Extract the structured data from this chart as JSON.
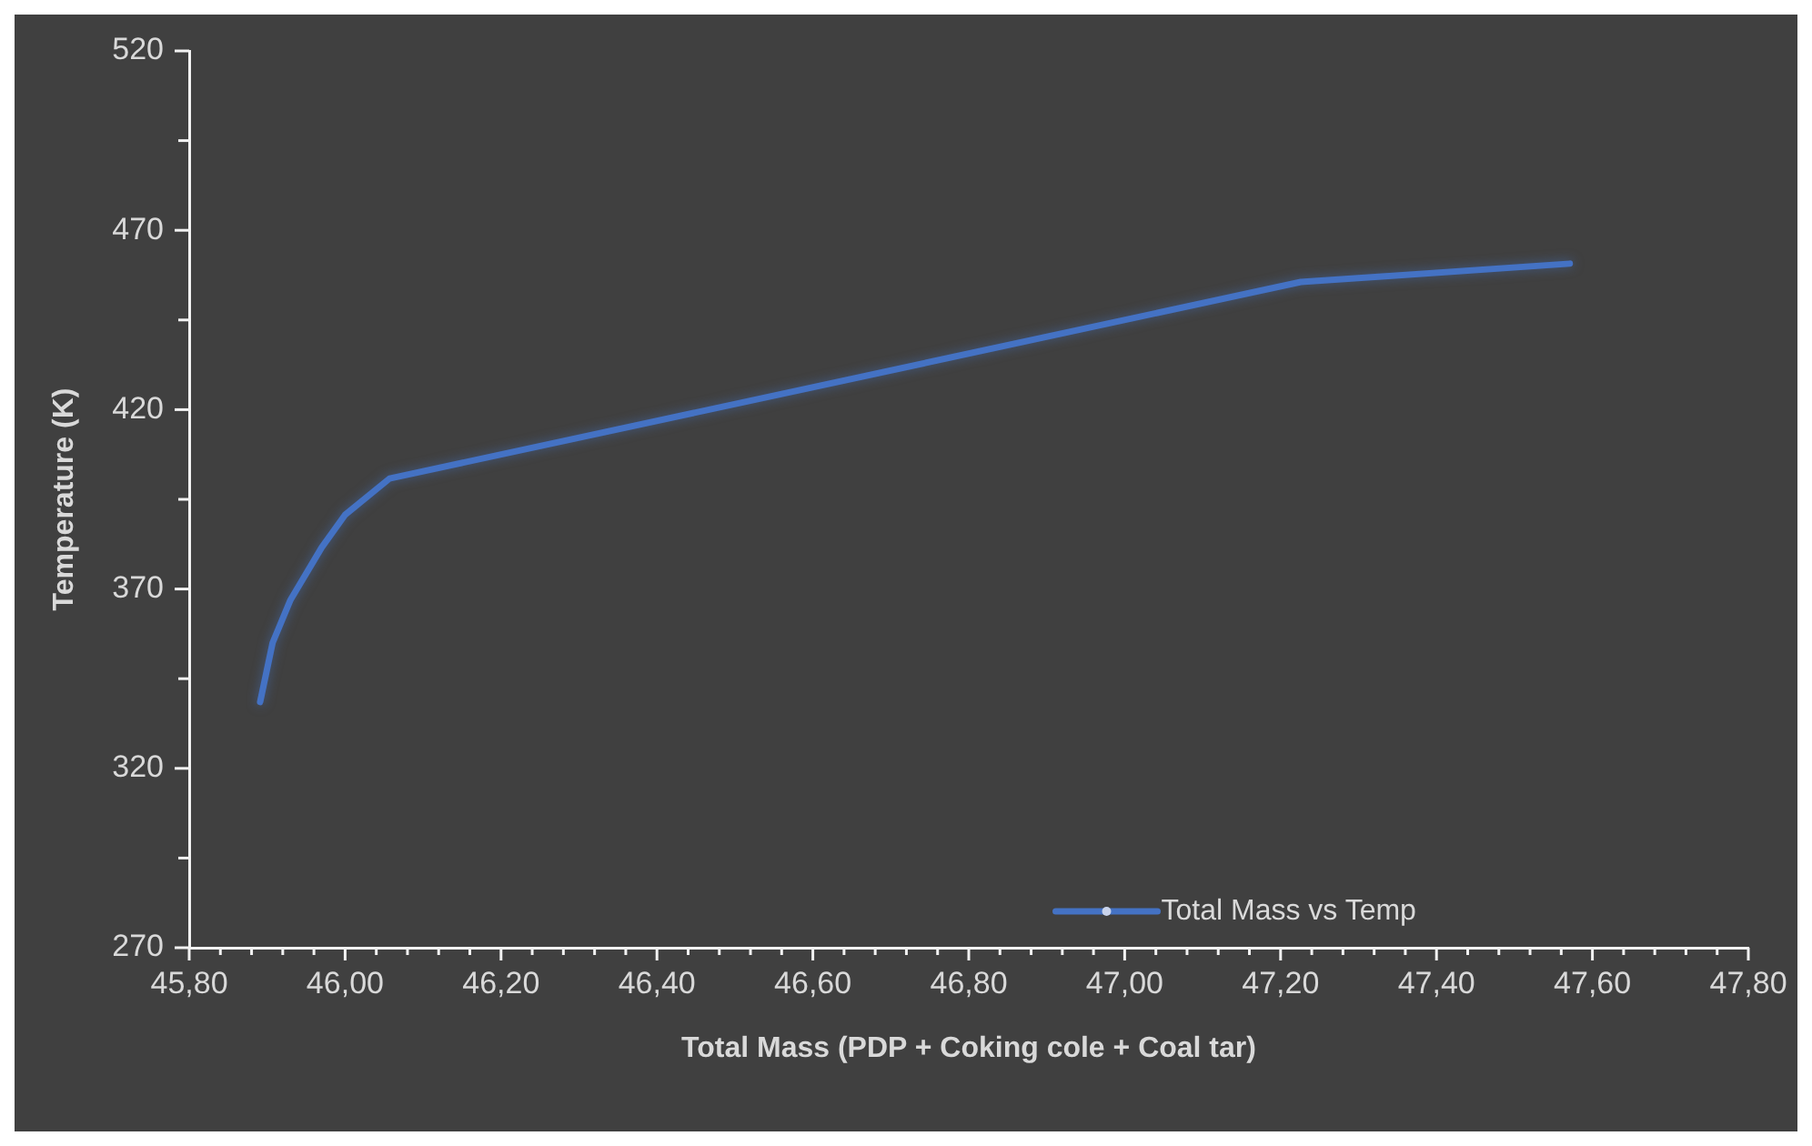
{
  "chart_data": {
    "type": "line",
    "xlabel": "Total Mass (PDP + Coking cole + Coal tar)",
    "ylabel": "Temperature (K)",
    "x": [
      45.891,
      45.907,
      45.93,
      45.97,
      46.0,
      46.057,
      47.226,
      47.571
    ],
    "series": [
      {
        "name": "Total Mass vs Temp",
        "color": "#4472c4",
        "values": [
          338.5,
          355,
          367,
          381.6,
          390.7,
          400.8,
          455.6,
          460.7
        ]
      }
    ],
    "xlim": [
      45.8,
      47.8
    ],
    "xticks": [
      {
        "value": 45.8,
        "label": "45,80"
      },
      {
        "value": 45.84,
        "label": null
      },
      {
        "value": 45.88,
        "label": null
      },
      {
        "value": 45.92,
        "label": null
      },
      {
        "value": 45.96,
        "label": null
      },
      {
        "value": 46.0,
        "label": "46,00"
      },
      {
        "value": 46.04,
        "label": null
      },
      {
        "value": 46.08,
        "label": null
      },
      {
        "value": 46.12,
        "label": null
      },
      {
        "value": 46.16,
        "label": null
      },
      {
        "value": 46.2,
        "label": "46,20"
      },
      {
        "value": 46.24,
        "label": null
      },
      {
        "value": 46.28,
        "label": null
      },
      {
        "value": 46.32,
        "label": null
      },
      {
        "value": 46.36,
        "label": null
      },
      {
        "value": 46.4,
        "label": "46,40"
      },
      {
        "value": 46.44,
        "label": null
      },
      {
        "value": 46.48,
        "label": null
      },
      {
        "value": 46.52,
        "label": null
      },
      {
        "value": 46.56,
        "label": null
      },
      {
        "value": 46.6,
        "label": "46,60"
      },
      {
        "value": 46.64,
        "label": null
      },
      {
        "value": 46.68,
        "label": null
      },
      {
        "value": 46.72,
        "label": null
      },
      {
        "value": 46.76,
        "label": null
      },
      {
        "value": 46.8,
        "label": "46,80"
      },
      {
        "value": 46.84,
        "label": null
      },
      {
        "value": 46.88,
        "label": null
      },
      {
        "value": 46.92,
        "label": null
      },
      {
        "value": 46.96,
        "label": null
      },
      {
        "value": 47.0,
        "label": "47,00"
      },
      {
        "value": 47.04,
        "label": null
      },
      {
        "value": 47.08,
        "label": null
      },
      {
        "value": 47.12,
        "label": null
      },
      {
        "value": 47.16,
        "label": null
      },
      {
        "value": 47.2,
        "label": "47,20"
      },
      {
        "value": 47.24,
        "label": null
      },
      {
        "value": 47.28,
        "label": null
      },
      {
        "value": 47.32,
        "label": null
      },
      {
        "value": 47.36,
        "label": null
      },
      {
        "value": 47.4,
        "label": "47,40"
      },
      {
        "value": 47.44,
        "label": null
      },
      {
        "value": 47.48,
        "label": null
      },
      {
        "value": 47.52,
        "label": null
      },
      {
        "value": 47.56,
        "label": null
      },
      {
        "value": 47.6,
        "label": "47,60"
      },
      {
        "value": 47.64,
        "label": null
      },
      {
        "value": 47.68,
        "label": null
      },
      {
        "value": 47.72,
        "label": null
      },
      {
        "value": 47.76,
        "label": null
      },
      {
        "value": 47.8,
        "label": "47,80"
      }
    ],
    "ylim": [
      270,
      520
    ],
    "yticks": [
      270,
      {
        "value": 295,
        "label": null
      },
      320,
      {
        "value": 345,
        "label": null
      },
      370,
      {
        "value": 395,
        "label": null
      },
      420,
      {
        "value": 445,
        "label": null
      },
      470,
      {
        "value": 495,
        "label": null
      },
      520
    ],
    "grid": false,
    "legend": "bottom",
    "marker": "none",
    "line_style": "solid"
  }
}
